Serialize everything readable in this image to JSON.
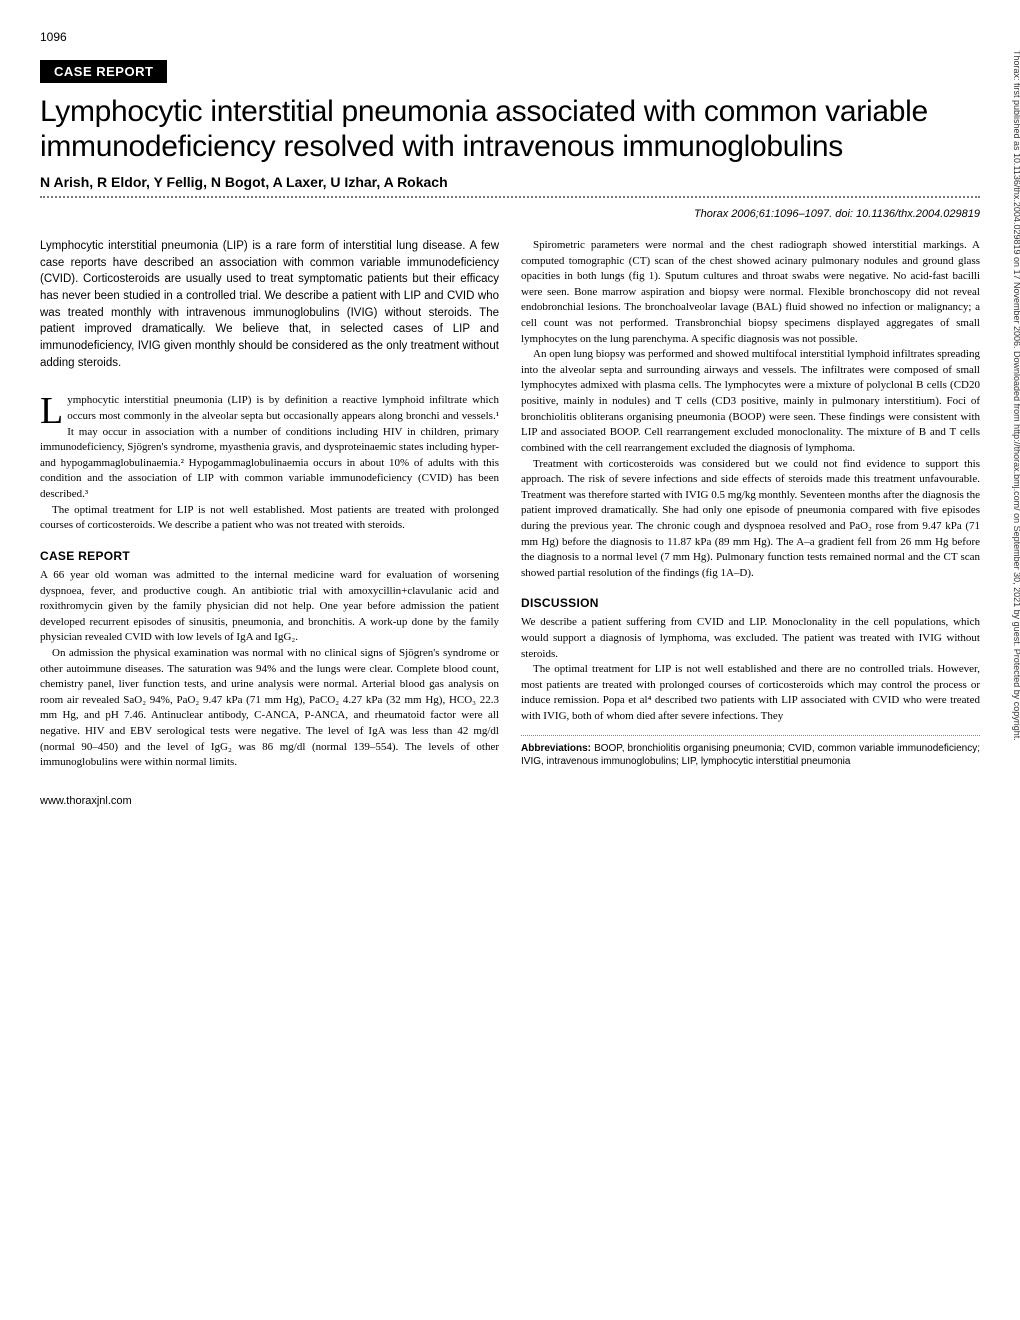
{
  "page_number": "1096",
  "section_label": "CASE REPORT",
  "title": "Lymphocytic interstitial pneumonia associated with common variable immunodeficiency resolved with intravenous immunoglobulins",
  "authors": "N Arish, R Eldor, Y Fellig, N Bogot, A Laxer, U Izhar, A Rokach",
  "citation": "Thorax 2006;61:1096–1097. doi: 10.1136/thx.2004.029819",
  "abstract": "Lymphocytic interstitial pneumonia (LIP) is a rare form of interstitial lung disease. A few case reports have described an association with common variable immunodeficiency (CVID). Corticosteroids are usually used to treat symptomatic patients but their efficacy has never been studied in a controlled trial. We describe a patient with LIP and CVID who was treated monthly with intravenous immunoglobulins (IVIG) without steroids. The patient improved dramatically. We believe that, in selected cases of LIP and immunodeficiency, IVIG given monthly should be considered as the only treatment without adding steroids.",
  "dropcap": "L",
  "intro_first": "ymphocytic interstitial pneumonia (LIP) is by definition a reactive lymphoid infiltrate which occurs most commonly in the alveolar septa but occasionally appears along bronchi and vessels.¹ It may occur in association with a number of conditions including HIV in children, primary immunodeficiency, Sjögren's syndrome, myasthenia gravis, and dysproteinaemic states including hyper- and hypogammaglobulinaemia.² Hypogammaglobulinaemia occurs in about 10% of adults with this condition and the association of LIP with common variable immunodeficiency (CVID) has been described.³",
  "intro_p2": "The optimal treatment for LIP is not well established. Most patients are treated with prolonged courses of corticosteroids. We describe a patient who was not treated with steroids.",
  "case_heading": "CASE REPORT",
  "case_p1": "A 66 year old woman was admitted to the internal medicine ward for evaluation of worsening dyspnoea, fever, and productive cough. An antibiotic trial with amoxycillin+clavulanic acid and roxithromycin given by the family physician did not help. One year before admission the patient developed recurrent episodes of sinusitis, pneumonia, and bronchitis. A work-up done by the family physician revealed CVID with low levels of IgA and IgG₂.",
  "case_p2": "On admission the physical examination was normal with no clinical signs of Sjögren's syndrome or other autoimmune diseases. The saturation was 94% and the lungs were clear. Complete blood count, chemistry panel, liver function tests, and urine analysis were normal. Arterial blood gas analysis on room air revealed SaO₂ 94%, PaO₂ 9.47 kPa (71 mm Hg), PaCO₂ 4.27 kPa (32 mm Hg), HCO₃ 22.3 mm Hg, and pH 7.46. Antinuclear antibody, C-ANCA, P-ANCA, and rheumatoid factor were all negative. HIV and EBV serological tests were negative. The level of IgA was less than 42 mg/dl (normal 90–450) and the level of IgG₂ was 86 mg/dl (normal 139–554). The levels of other immunoglobulins were within normal limits.",
  "col2_p1": "Spirometric parameters were normal and the chest radiograph showed interstitial markings. A computed tomographic (CT) scan of the chest showed acinary pulmonary nodules and ground glass opacities in both lungs (fig 1). Sputum cultures and throat swabs were negative. No acid-fast bacilli were seen. Bone marrow aspiration and biopsy were normal. Flexible bronchoscopy did not reveal endobronchial lesions. The bronchoalveolar lavage (BAL) fluid showed no infection or malignancy; a cell count was not performed. Transbronchial biopsy specimens displayed aggregates of small lymphocytes on the lung parenchyma. A specific diagnosis was not possible.",
  "col2_p2": "An open lung biopsy was performed and showed multifocal interstitial lymphoid infiltrates spreading into the alveolar septa and surrounding airways and vessels. The infiltrates were composed of small lymphocytes admixed with plasma cells. The lymphocytes were a mixture of polyclonal B cells (CD20 positive, mainly in nodules) and T cells (CD3 positive, mainly in pulmonary interstitium). Foci of bronchiolitis obliterans organising pneumonia (BOOP) were seen. These findings were consistent with LIP and associated BOOP. Cell rearrangement excluded monoclonality. The mixture of B and T cells combined with the cell rearrangement excluded the diagnosis of lymphoma.",
  "col2_p3": "Treatment with corticosteroids was considered but we could not find evidence to support this approach. The risk of severe infections and side effects of steroids made this treatment unfavourable. Treatment was therefore started with IVIG 0.5 mg/kg monthly. Seventeen months after the diagnosis the patient improved dramatically. She had only one episode of pneumonia compared with five episodes during the previous year. The chronic cough and dyspnoea resolved and PaO₂ rose from 9.47 kPa (71 mm Hg) before the diagnosis to 11.87 kPa (89 mm Hg). The A–a gradient fell from 26 mm Hg before the diagnosis to a normal level (7 mm Hg). Pulmonary function tests remained normal and the CT scan showed partial resolution of the findings (fig 1A–D).",
  "discussion_heading": "DISCUSSION",
  "discussion_p1": "We describe a patient suffering from CVID and LIP. Monoclonality in the cell populations, which would support a diagnosis of lymphoma, was excluded. The patient was treated with IVIG without steroids.",
  "discussion_p2": "The optimal treatment for LIP is not well established and there are no controlled trials. However, most patients are treated with prolonged courses of corticosteroids which may control the process or induce remission. Popa et al⁴ described two patients with LIP associated with CVID who were treated with IVIG, both of whom died after severe infections. They",
  "abbrev_label": "Abbreviations:",
  "abbrev_text": " BOOP, bronchiolitis organising pneumonia; CVID, common variable immunodeficiency; IVIG, intravenous immunoglobulins; LIP, lymphocytic interstitial pneumonia",
  "footer": "www.thoraxjnl.com",
  "side_text": "Thorax: first published as 10.1136/thx.2004.029819 on 17 November 2006. Downloaded from http://thorax.bmj.com/ on September 30, 2021 by guest. Protected by copyright."
}
